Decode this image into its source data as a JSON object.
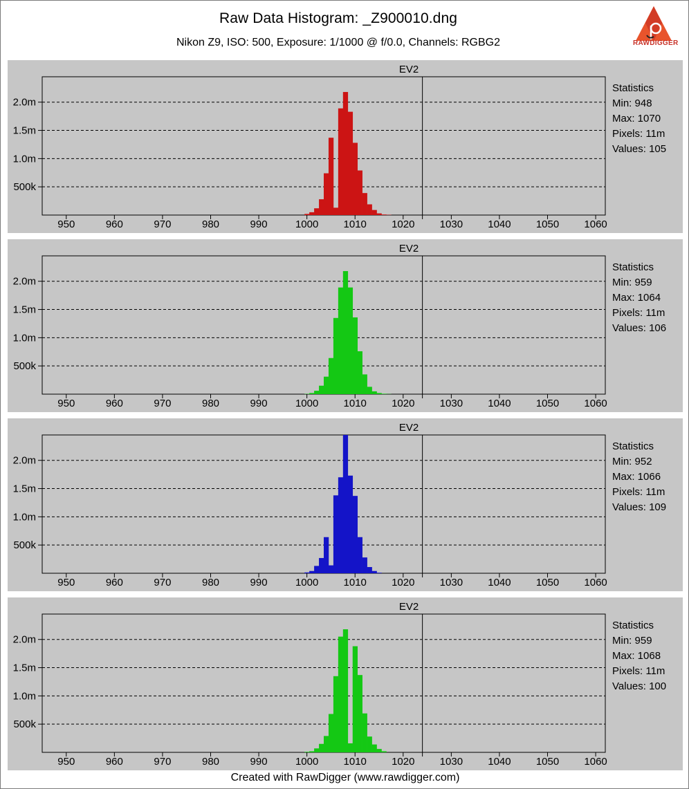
{
  "header": {
    "title": "Raw Data Histogram:  _Z900010.dng",
    "subtitle": "Nikon Z9, ISO: 500, Exposure: 1/1000 @ f/0.0, Channels: RGBG2",
    "logo_text": "RAWDIGGER"
  },
  "footer": {
    "text": "Created with RawDigger (www.rawdigger.com)"
  },
  "chart_data": [
    {
      "type": "bar",
      "channel": "R",
      "color": "#cc1414",
      "title": "EV2",
      "xlim": [
        945,
        1062
      ],
      "ylim": [
        0,
        2450000
      ],
      "x_ticks": [
        950,
        960,
        970,
        980,
        990,
        1000,
        1010,
        1020,
        1030,
        1040,
        1050,
        1060
      ],
      "y_ticks": [
        {
          "value": 500000,
          "label": "500k"
        },
        {
          "value": 1000000,
          "label": "1.0m"
        },
        {
          "value": 1500000,
          "label": "1.5m"
        },
        {
          "value": 2000000,
          "label": "2.0m"
        }
      ],
      "marker_x": 1024,
      "bins": {
        "x": [
          1000,
          1001,
          1002,
          1003,
          1004,
          1005,
          1006,
          1007,
          1008,
          1009,
          1010,
          1011,
          1012,
          1013,
          1014,
          1015,
          1016,
          1017
        ],
        "y": [
          20000,
          50000,
          120000,
          280000,
          740000,
          1370000,
          130000,
          1890000,
          2180000,
          1830000,
          1280000,
          790000,
          390000,
          190000,
          90000,
          30000,
          10000,
          5000
        ]
      },
      "stats": {
        "heading": "Statistics",
        "min": "Min: 948",
        "max": "Max: 1070",
        "pixels": "Pixels: 11m",
        "values": "Values: 105"
      }
    },
    {
      "type": "bar",
      "channel": "G",
      "color": "#14c814",
      "title": "EV2",
      "xlim": [
        945,
        1062
      ],
      "ylim": [
        0,
        2450000
      ],
      "x_ticks": [
        950,
        960,
        970,
        980,
        990,
        1000,
        1010,
        1020,
        1030,
        1040,
        1050,
        1060
      ],
      "y_ticks": [
        {
          "value": 500000,
          "label": "500k"
        },
        {
          "value": 1000000,
          "label": "1.0m"
        },
        {
          "value": 1500000,
          "label": "1.5m"
        },
        {
          "value": 2000000,
          "label": "2.0m"
        }
      ],
      "marker_x": 1024,
      "bins": {
        "x": [
          1000,
          1001,
          1002,
          1003,
          1004,
          1005,
          1006,
          1007,
          1008,
          1009,
          1010,
          1011,
          1012,
          1013,
          1014,
          1015,
          1016,
          1017
        ],
        "y": [
          5000,
          20000,
          60000,
          150000,
          310000,
          640000,
          1350000,
          1890000,
          2180000,
          1890000,
          1360000,
          760000,
          350000,
          130000,
          50000,
          20000,
          8000,
          3000
        ]
      },
      "stats": {
        "heading": "Statistics",
        "min": "Min: 959",
        "max": "Max: 1064",
        "pixels": "Pixels: 11m",
        "values": "Values: 106"
      }
    },
    {
      "type": "bar",
      "channel": "B",
      "color": "#1414c8",
      "title": "EV2",
      "xlim": [
        945,
        1062
      ],
      "ylim": [
        0,
        2450000
      ],
      "x_ticks": [
        950,
        960,
        970,
        980,
        990,
        1000,
        1010,
        1020,
        1030,
        1040,
        1050,
        1060
      ],
      "y_ticks": [
        {
          "value": 500000,
          "label": "500k"
        },
        {
          "value": 1000000,
          "label": "1.0m"
        },
        {
          "value": 1500000,
          "label": "1.5m"
        },
        {
          "value": 2000000,
          "label": "2.0m"
        }
      ],
      "marker_x": 1024,
      "bins": {
        "x": [
          1000,
          1001,
          1002,
          1003,
          1004,
          1005,
          1006,
          1007,
          1008,
          1009,
          1010,
          1011,
          1012,
          1013,
          1014,
          1015
        ],
        "y": [
          15000,
          40000,
          130000,
          270000,
          640000,
          140000,
          1380000,
          1700000,
          2450000,
          1730000,
          1370000,
          640000,
          280000,
          110000,
          40000,
          10000
        ]
      },
      "stats": {
        "heading": "Statistics",
        "min": "Min: 952",
        "max": "Max: 1066",
        "pixels": "Pixels: 11m",
        "values": "Values: 109"
      }
    },
    {
      "type": "bar",
      "channel": "G2",
      "color": "#14c814",
      "title": "EV2",
      "xlim": [
        945,
        1062
      ],
      "ylim": [
        0,
        2450000
      ],
      "x_ticks": [
        950,
        960,
        970,
        980,
        990,
        1000,
        1010,
        1020,
        1030,
        1040,
        1050,
        1060
      ],
      "y_ticks": [
        {
          "value": 500000,
          "label": "500k"
        },
        {
          "value": 1000000,
          "label": "1.0m"
        },
        {
          "value": 1500000,
          "label": "1.5m"
        },
        {
          "value": 2000000,
          "label": "2.0m"
        }
      ],
      "marker_x": 1024,
      "bins": {
        "x": [
          1000,
          1001,
          1002,
          1003,
          1004,
          1005,
          1006,
          1007,
          1008,
          1009,
          1010,
          1011,
          1012,
          1013,
          1014,
          1015,
          1016
        ],
        "y": [
          10000,
          20000,
          70000,
          150000,
          290000,
          680000,
          1350000,
          2050000,
          2180000,
          160000,
          1880000,
          1370000,
          690000,
          280000,
          140000,
          60000,
          20000
        ]
      },
      "stats": {
        "heading": "Statistics",
        "min": "Min: 959",
        "max": "Max: 1068",
        "pixels": "Pixels: 11m",
        "values": "Values: 100"
      }
    }
  ]
}
